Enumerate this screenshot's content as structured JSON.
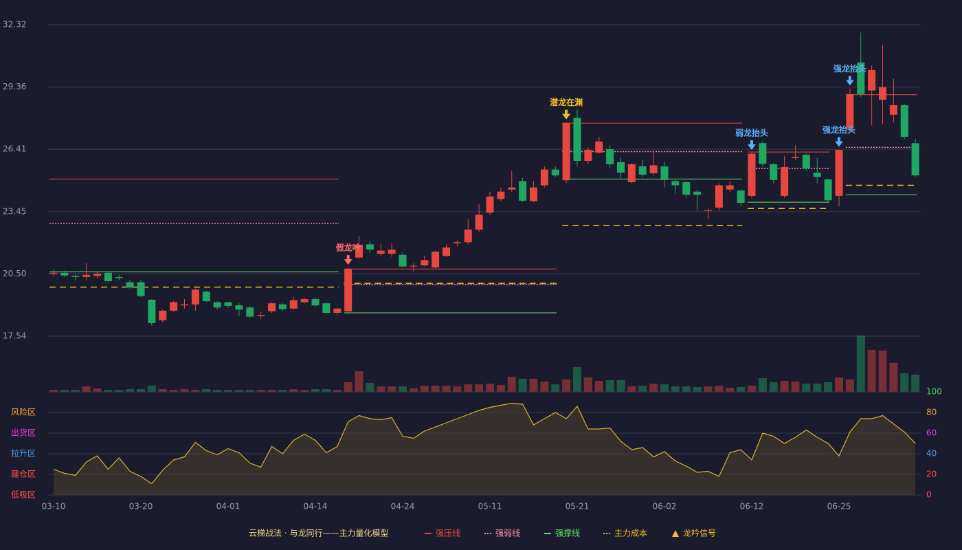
{
  "chart_data": {
    "type": "candlestick",
    "categories": [
      "03-10",
      null,
      null,
      null,
      null,
      null,
      null,
      null,
      "03-20",
      null,
      null,
      null,
      null,
      null,
      null,
      null,
      "04-01",
      null,
      null,
      null,
      null,
      null,
      null,
      null,
      "04-14",
      null,
      null,
      null,
      null,
      null,
      null,
      null,
      "04-24",
      null,
      null,
      null,
      null,
      null,
      null,
      null,
      "05-11",
      null,
      null,
      null,
      null,
      null,
      null,
      null,
      "05-21",
      null,
      null,
      null,
      null,
      null,
      null,
      null,
      "06-02",
      null,
      null,
      null,
      null,
      null,
      null,
      null,
      "06-12",
      null,
      null,
      null,
      null,
      null,
      null,
      null,
      "06-25",
      null,
      null,
      null,
      null,
      null,
      null,
      null
    ],
    "open": [
      20.5,
      20.55,
      20.4,
      20.35,
      20.4,
      20.55,
      20.35,
      20.1,
      20.1,
      19.27,
      18.3,
      18.75,
      19.0,
      19.05,
      19.65,
      19.15,
      19.15,
      19.0,
      18.9,
      18.5,
      18.72,
      19.05,
      18.85,
      19.15,
      19.3,
      19.1,
      18.65,
      18.72,
      21.27,
      21.9,
      21.45,
      21.45,
      21.4,
      20.85,
      20.9,
      20.8,
      21.35,
      21.95,
      22.0,
      22.6,
      23.4,
      24.05,
      24.5,
      24.9,
      23.95,
      24.7,
      25.45,
      24.94,
      27.9,
      25.86,
      26.25,
      26.41,
      25.8,
      24.85,
      25.6,
      25.27,
      25.6,
      24.9,
      24.85,
      24.4,
      23.5,
      23.64,
      24.5,
      24.45,
      24.2,
      26.7,
      25.7,
      24.2,
      26.0,
      26.15,
      25.3,
      24.98,
      24.2,
      27.39,
      30.53,
      29.2,
      28.76,
      28.05,
      28.5,
      26.7
    ],
    "high": [
      20.7,
      20.65,
      20.5,
      21.0,
      20.6,
      20.6,
      20.45,
      20.2,
      20.2,
      19.3,
      18.8,
      19.2,
      19.3,
      19.8,
      19.7,
      19.2,
      19.1,
      19.1,
      18.95,
      18.7,
      19.15,
      19.1,
      19.4,
      19.35,
      19.35,
      19.15,
      18.9,
      20.8,
      22.3,
      22.05,
      21.9,
      21.95,
      21.5,
      21.0,
      21.35,
      21.6,
      21.9,
      22.1,
      23.1,
      23.8,
      24.4,
      24.6,
      25.4,
      25.05,
      24.9,
      25.6,
      25.6,
      27.7,
      28.3,
      26.5,
      27.0,
      26.6,
      26.0,
      25.75,
      25.9,
      26.4,
      25.8,
      24.95,
      24.9,
      24.5,
      23.6,
      24.8,
      24.9,
      24.5,
      26.25,
      26.8,
      25.75,
      26.1,
      26.6,
      26.2,
      26.0,
      25.0,
      26.4,
      29.3,
      31.95,
      30.4,
      31.35,
      29.75,
      28.55,
      26.9
    ],
    "low": [
      20.4,
      20.35,
      20.2,
      20.2,
      20.3,
      20.1,
      20.2,
      19.8,
      19.4,
      18.05,
      18.2,
      18.7,
      18.85,
      18.75,
      19.15,
      18.8,
      18.9,
      18.5,
      18.4,
      18.35,
      18.65,
      18.75,
      18.8,
      19.1,
      18.95,
      18.6,
      18.55,
      18.6,
      21.2,
      21.5,
      21.35,
      21.3,
      20.8,
      20.6,
      20.85,
      20.75,
      21.3,
      21.8,
      21.9,
      22.5,
      23.3,
      23.95,
      24.4,
      23.9,
      23.9,
      24.6,
      25.1,
      24.8,
      25.6,
      25.7,
      26.2,
      25.5,
      25.05,
      24.8,
      25.1,
      25.2,
      24.6,
      24.3,
      24.1,
      23.5,
      23.1,
      23.5,
      24.4,
      23.7,
      24.1,
      25.6,
      24.8,
      24.1,
      25.9,
      25.4,
      24.8,
      23.9,
      23.7,
      27.2,
      28.9,
      27.55,
      27.6,
      27.7,
      26.9,
      25.1
    ],
    "close": [
      20.55,
      20.42,
      20.35,
      20.45,
      20.5,
      20.15,
      20.3,
      19.85,
      19.45,
      18.16,
      18.75,
      19.15,
      19.05,
      19.75,
      19.2,
      18.9,
      18.98,
      18.8,
      18.47,
      18.55,
      19.1,
      18.82,
      19.25,
      19.3,
      19.0,
      18.65,
      18.85,
      20.73,
      21.88,
      21.65,
      21.6,
      21.65,
      20.85,
      20.88,
      21.15,
      21.55,
      21.75,
      22.0,
      22.6,
      23.3,
      24.17,
      24.4,
      24.6,
      23.97,
      24.6,
      25.45,
      25.17,
      27.65,
      25.86,
      26.38,
      26.78,
      25.7,
      25.3,
      25.7,
      25.2,
      25.65,
      24.95,
      24.7,
      24.25,
      24.25,
      23.52,
      24.7,
      24.7,
      23.87,
      26.2,
      25.72,
      24.95,
      25.57,
      26.05,
      25.5,
      25.1,
      23.99,
      26.38,
      29.03,
      29.03,
      30.17,
      29.36,
      28.5,
      27.0,
      25.17
    ],
    "up_color": "#e8483f",
    "down_color": "#1fa864",
    "ylim": [
      17.54,
      32.32
    ],
    "yticks": [
      17.54,
      {
        "value": 20.5,
        "label": "20.50"
      },
      23.45,
      26.41,
      29.36,
      32.32
    ],
    "grid": true,
    "volume": [
      3,
      3,
      3,
      8,
      5,
      3,
      3,
      4,
      4,
      9,
      4,
      3,
      4,
      3,
      4,
      3,
      3,
      3,
      3,
      3,
      3,
      3,
      4,
      3,
      4,
      4,
      3,
      14,
      30,
      13,
      8,
      8,
      8,
      5,
      9,
      9,
      9,
      8,
      11,
      11,
      12,
      10,
      22,
      19,
      19,
      15,
      11,
      18,
      36,
      21,
      16,
      17,
      17,
      8,
      9,
      12,
      11,
      8,
      8,
      7,
      8,
      9,
      6,
      7,
      9,
      20,
      14,
      16,
      15,
      12,
      12,
      14,
      21,
      18,
      82,
      61,
      60,
      42,
      27,
      25
    ],
    "indicator": {
      "color": "#d9b52c",
      "values": [
        25,
        21,
        19,
        32,
        38,
        25,
        36,
        23,
        18,
        11,
        24,
        34,
        37,
        51,
        43,
        39,
        45,
        41,
        31,
        27,
        47,
        40,
        53,
        59,
        53,
        41,
        47,
        71,
        77,
        74,
        73,
        75,
        57,
        55,
        62,
        66,
        70,
        74,
        78,
        82,
        85,
        87,
        89,
        88,
        68,
        74,
        80,
        74,
        86,
        64,
        64,
        65,
        52,
        44,
        46,
        37,
        42,
        33,
        28,
        22,
        23,
        18,
        41,
        44,
        34,
        60,
        57,
        50,
        56,
        63,
        56,
        50,
        38,
        61,
        74,
        74,
        77,
        69,
        61,
        50
      ],
      "ylim": [
        0,
        100
      ],
      "yticks": [
        0,
        20,
        40,
        60,
        80,
        100
      ],
      "tick_colors": [
        "#ff4d4d",
        "#ff4d4d",
        "#4a9ff0",
        "#e040e0",
        "#f0a030",
        "#3ddc5a"
      ],
      "zones": [
        {
          "label": "风险区",
          "value": 80,
          "color": "#f0a030"
        },
        {
          "label": "出货区",
          "value": 60,
          "color": "#e040e0"
        },
        {
          "label": "拉升区",
          "value": 40,
          "color": "#4a9ff0"
        },
        {
          "label": "建仓区",
          "value": 20,
          "color": "#ff5050"
        },
        {
          "label": "低吸区",
          "value": 0,
          "color": "#ff5050"
        }
      ]
    },
    "levels": [
      {
        "name": "强压线",
        "color": "#e8483f",
        "dash": "none",
        "segments": [
          {
            "start": 0,
            "end": 26,
            "value": 25.0
          },
          {
            "start": 27,
            "end": 46,
            "value": 20.73
          },
          {
            "start": 47,
            "end": 63,
            "value": 27.65
          },
          {
            "start": 64,
            "end": 71,
            "value": 26.28
          },
          {
            "start": 73,
            "end": 79,
            "value": 29.0
          }
        ]
      },
      {
        "name": "强弱线",
        "color": "#ff8fa0",
        "dash": "2 2",
        "segments": [
          {
            "start": 0,
            "end": 26,
            "value": 22.9
          },
          {
            "start": 27,
            "end": 46,
            "value": 20.0
          },
          {
            "start": 47,
            "end": 63,
            "value": 26.3
          },
          {
            "start": 64,
            "end": 71,
            "value": 25.5
          },
          {
            "start": 73,
            "end": 79,
            "value": 26.5
          }
        ]
      },
      {
        "name": "强撑线",
        "color": "#5ee86a",
        "dash": "none",
        "segments": [
          {
            "start": 0,
            "end": 26,
            "value": 20.6
          },
          {
            "start": 27,
            "end": 46,
            "value": 18.65
          },
          {
            "start": 47,
            "end": 63,
            "value": 25.0
          },
          {
            "start": 64,
            "end": 71,
            "value": 23.9
          },
          {
            "start": 73,
            "end": 79,
            "value": 24.25
          }
        ]
      },
      {
        "name": "主力成本",
        "color": "#f0c020",
        "dash": "9 6",
        "segments": [
          {
            "start": 0,
            "end": 26,
            "value": 19.87
          },
          {
            "start": 27,
            "end": 46,
            "value": 20.05
          },
          {
            "start": 47,
            "end": 63,
            "value": 22.8
          },
          {
            "start": 64,
            "end": 71,
            "value": 23.6
          },
          {
            "start": 73,
            "end": 79,
            "value": 24.7
          }
        ]
      }
    ],
    "signals": [
      {
        "label": "假龙吟",
        "index": 27,
        "color": "#ff6b6b"
      },
      {
        "label": "潜龙在渊",
        "index": 47,
        "color": "#f0c020"
      },
      {
        "label": "弱龙抬头",
        "index": 64,
        "color": "#5ab0f5"
      },
      {
        "label": "强龙抬头",
        "index": 72,
        "color": "#5ab0f5"
      },
      {
        "label": "强龙抬头",
        "index": 73,
        "color": "#5ab0f5"
      }
    ],
    "legend_title": "云梯战法 · 与龙同行——主力量化模型",
    "signal_legend": {
      "name": "龙吟信号",
      "color": "#f0c020"
    }
  }
}
